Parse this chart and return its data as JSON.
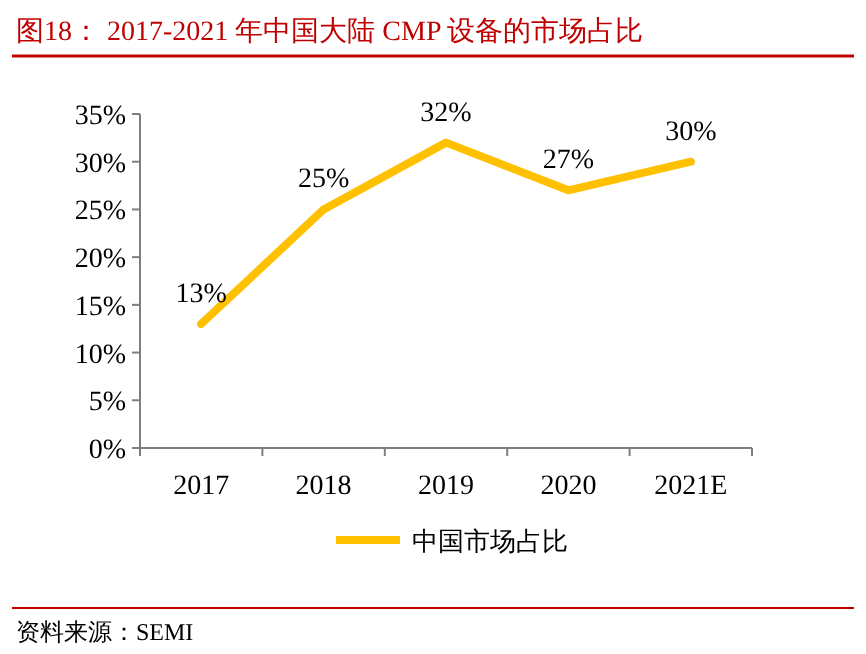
{
  "chart_data": {
    "type": "line",
    "title": "图18：  2017-2021 年中国大陆 CMP 设备的市场占比",
    "categories": [
      "2017",
      "2018",
      "2019",
      "2020",
      "2021E"
    ],
    "series": [
      {
        "name": "中国市场占比",
        "color": "#ffc000",
        "values": [
          13,
          25,
          32,
          27,
          30
        ],
        "value_labels": [
          "13%",
          "25%",
          "32%",
          "27%",
          "30%"
        ]
      }
    ],
    "ylim": [
      0,
      35
    ],
    "yticks": [
      {
        "value": 0,
        "label": "0%"
      },
      {
        "value": 5,
        "label": "5%"
      },
      {
        "value": 10,
        "label": "10%"
      },
      {
        "value": 15,
        "label": "15%"
      },
      {
        "value": 20,
        "label": "20%"
      },
      {
        "value": 25,
        "label": "25%"
      },
      {
        "value": 30,
        "label": "30%"
      },
      {
        "value": 35,
        "label": "35%"
      }
    ],
    "legend": "bottom",
    "grid": false,
    "annotations": [
      "资料来源：SEMI"
    ]
  }
}
